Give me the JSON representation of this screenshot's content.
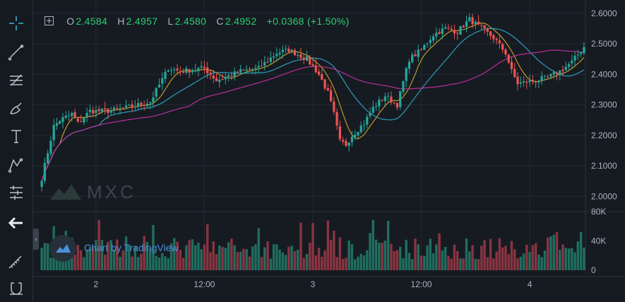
{
  "toolbar": {
    "tools": [
      "crosshair-icon",
      "trend-line-icon",
      "fib-retracement-icon",
      "brush-icon",
      "text-tool-icon",
      "pattern-icon",
      "prediction-icon",
      "back-arrow-icon",
      "ruler-icon",
      "magnet-icon"
    ]
  },
  "legend": {
    "open_label": "O",
    "open_value": "2.4584",
    "high_label": "H",
    "high_value": "2.4957",
    "low_label": "L",
    "low_value": "2.4580",
    "close_label": "C",
    "close_value": "2.4952",
    "change": "+0.0368 (+1.50%)"
  },
  "watermark": {
    "text": "MXC"
  },
  "branding": {
    "text": "Chart by TradingView"
  },
  "colors": {
    "background": "#161b22",
    "up": "#26a69a",
    "down": "#ef5350",
    "ma_fast": "#c8a02a",
    "ma_mid": "#2fa3c2",
    "ma_slow": "#c2309c",
    "text": "#a9b4c0"
  },
  "chart_data": {
    "type": "candlestick",
    "y_axis": {
      "range": [
        1.95,
        2.625
      ],
      "ticks": [
        "2.0000",
        "2.1000",
        "2.2000",
        "2.3000",
        "2.4000",
        "2.5000",
        "2.6000"
      ]
    },
    "volume_axis": {
      "range": [
        0,
        80000
      ],
      "ticks": [
        "0",
        "40K",
        "80K"
      ]
    },
    "x_axis": {
      "tick_labels": [
        "2",
        "12:00",
        "3",
        "12:00",
        "4"
      ],
      "tick_positions": [
        18,
        54,
        90,
        126,
        162
      ]
    },
    "anchors": [
      [
        0,
        2.06
      ],
      [
        4,
        2.23
      ],
      [
        6,
        2.25
      ],
      [
        10,
        2.27
      ],
      [
        12,
        2.24
      ],
      [
        16,
        2.28
      ],
      [
        22,
        2.28
      ],
      [
        28,
        2.29
      ],
      [
        36,
        2.31
      ],
      [
        42,
        2.42
      ],
      [
        46,
        2.41
      ],
      [
        54,
        2.42
      ],
      [
        58,
        2.38
      ],
      [
        66,
        2.41
      ],
      [
        72,
        2.42
      ],
      [
        78,
        2.47
      ],
      [
        82,
        2.48
      ],
      [
        88,
        2.45
      ],
      [
        92,
        2.4
      ],
      [
        95,
        2.34
      ],
      [
        97,
        2.27
      ],
      [
        99,
        2.18
      ],
      [
        101,
        2.17
      ],
      [
        103,
        2.2
      ],
      [
        107,
        2.24
      ],
      [
        110,
        2.29
      ],
      [
        114,
        2.33
      ],
      [
        118,
        2.3
      ],
      [
        122,
        2.45
      ],
      [
        126,
        2.48
      ],
      [
        130,
        2.53
      ],
      [
        134,
        2.55
      ],
      [
        138,
        2.54
      ],
      [
        142,
        2.58
      ],
      [
        146,
        2.55
      ],
      [
        150,
        2.52
      ],
      [
        154,
        2.47
      ],
      [
        156,
        2.41
      ],
      [
        158,
        2.37
      ],
      [
        164,
        2.38
      ],
      [
        168,
        2.39
      ],
      [
        172,
        2.41
      ],
      [
        176,
        2.44
      ],
      [
        180,
        2.49
      ]
    ],
    "candle_count": 181,
    "moving_averages": [
      {
        "name": "ma_fast",
        "period": 7
      },
      {
        "name": "ma_mid",
        "period": 20
      },
      {
        "name": "ma_slow",
        "period": 50
      }
    ]
  }
}
